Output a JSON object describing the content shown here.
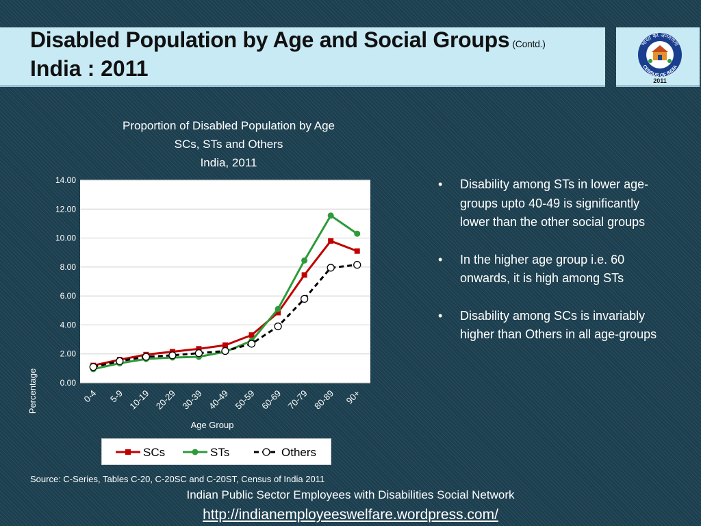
{
  "header": {
    "title_main": "Disabled Population by Age and Social Groups",
    "title_suffix": "(Contd.)",
    "title_line2": "India : 2011"
  },
  "logo": {
    "icon": "census-of-india-logo-icon",
    "hindi_text": "भारत की जनगणना",
    "english_text": "CENSUS OF INDIA",
    "year": "2011"
  },
  "bullets": [
    "Disability among STs in lower age-groups upto 40-49 is significantly lower than the other social groups",
    "In  the higher age group i.e. 60 onwards, it is  high among STs",
    "Disability among SCs is invariably higher than Others in all age-groups"
  ],
  "source": "Source: C-Series, Tables C-20, C-20SC and C-20ST, Census of India 2011",
  "footer": {
    "network": "Indian Public Sector Employees with Disabilities Social Network",
    "url": "http://indianemployeeswelfare.wordpress.com/"
  },
  "colors": {
    "background": "#1c3f4f",
    "header_bg": "#c8eaf5",
    "scs": "#c00000",
    "sts": "#2e9a3a",
    "others": "#000000"
  },
  "chart_data": {
    "type": "line",
    "title_lines": [
      "Proportion of Disabled Population by Age",
      "SCs, STs and Others",
      "India, 2011"
    ],
    "xlabel": "Age Group",
    "ylabel": "Percentage",
    "categories": [
      "0-4",
      "5-9",
      "10-19",
      "20-29",
      "30-39",
      "40-49",
      "50-59",
      "60-69",
      "70-79",
      "80-89",
      "90+"
    ],
    "ylim": [
      0,
      14
    ],
    "yticks": [
      "0.00",
      "2.00",
      "4.00",
      "6.00",
      "8.00",
      "10.00",
      "12.00",
      "14.00"
    ],
    "grid": true,
    "legend_position": "bottom",
    "series": [
      {
        "name": "SCs",
        "color": "#c00000",
        "marker": "square",
        "dashed": false,
        "values": [
          1.2,
          1.6,
          1.95,
          2.15,
          2.35,
          2.6,
          3.3,
          4.85,
          7.45,
          9.8,
          9.1
        ]
      },
      {
        "name": "STs",
        "color": "#2e9a3a",
        "marker": "circle",
        "dashed": false,
        "values": [
          0.95,
          1.35,
          1.65,
          1.75,
          1.8,
          2.15,
          2.9,
          5.1,
          8.45,
          11.55,
          10.3
        ]
      },
      {
        "name": "Others",
        "color": "#000000",
        "marker": "open-circle",
        "dashed": true,
        "values": [
          1.1,
          1.5,
          1.8,
          1.9,
          2.05,
          2.2,
          2.7,
          3.9,
          5.8,
          7.95,
          8.15
        ]
      }
    ]
  }
}
